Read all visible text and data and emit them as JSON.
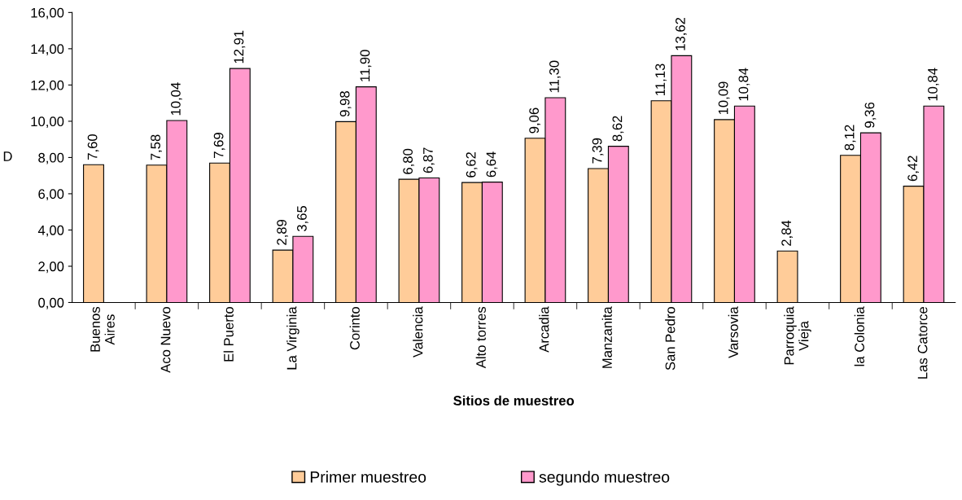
{
  "chart_data": {
    "type": "bar",
    "xlabel": "Sitios de muestreo",
    "ylabel": "D",
    "categories": [
      "Buenos\nAires",
      "Aco Nuevo",
      "El Puerto",
      "La Virginia",
      "Corinto",
      "Valencia",
      "Alto torres",
      "Arcadia",
      "Manzanita",
      "San Pedro",
      "Varsovia",
      "Parroquia\nVieja",
      "la Colonia",
      "Las Catorce"
    ],
    "series": [
      {
        "name": "Primer muestreo",
        "color": "#ffcc99",
        "values": [
          7.6,
          7.58,
          7.69,
          2.89,
          9.98,
          6.8,
          6.62,
          9.06,
          7.39,
          11.13,
          10.09,
          2.84,
          8.12,
          6.42
        ],
        "value_labels": [
          "7,60",
          "7,58",
          "7,69",
          "2,89",
          "9,98",
          "6,80",
          "6,62",
          "9,06",
          "7,39",
          "11,13",
          "10,09",
          "2,84",
          "8,12",
          "6,42"
        ]
      },
      {
        "name": "segundo muestreo",
        "color": "#ff99cc",
        "values": [
          null,
          10.04,
          12.91,
          3.65,
          11.9,
          6.87,
          6.64,
          11.3,
          8.62,
          13.62,
          10.84,
          null,
          9.36,
          10.84
        ],
        "value_labels": [
          null,
          "10,04",
          "12,91",
          "3,65",
          "11,90",
          "6,87",
          "6,64",
          "11,30",
          "8,62",
          "13,62",
          "10,84",
          null,
          "9,36",
          "10,84"
        ]
      }
    ],
    "ylim": [
      0,
      16
    ],
    "yticks": [
      {
        "value": 0,
        "label": "0,00"
      },
      {
        "value": 2,
        "label": "2,00"
      },
      {
        "value": 4,
        "label": "4,00"
      },
      {
        "value": 6,
        "label": "6,00"
      },
      {
        "value": 8,
        "label": "8,00"
      },
      {
        "value": 10,
        "label": "10,00"
      },
      {
        "value": 12,
        "label": "12,00"
      },
      {
        "value": 14,
        "label": "14,00"
      },
      {
        "value": 16,
        "label": "16,00"
      }
    ],
    "grid": false,
    "legend": "bottom"
  }
}
